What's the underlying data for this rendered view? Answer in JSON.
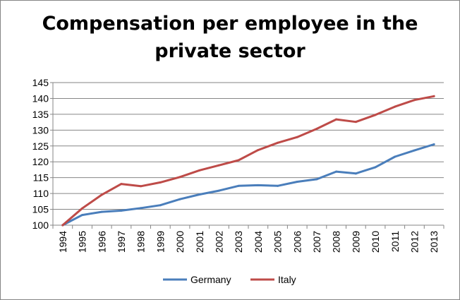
{
  "chart_data": {
    "type": "line",
    "title_lines": [
      "Compensation per employee in the",
      "private sector"
    ],
    "xlabel": "",
    "ylabel": "",
    "categories": [
      "1994",
      "1995",
      "1996",
      "1997",
      "1998",
      "1999",
      "2000",
      "2001",
      "2002",
      "2003",
      "2004",
      "2005",
      "2006",
      "2007",
      "2008",
      "2009",
      "2010",
      "2011",
      "2012",
      "2013"
    ],
    "ylim": [
      100,
      145
    ],
    "yticks": [
      100,
      105,
      110,
      115,
      120,
      125,
      130,
      135,
      140,
      145
    ],
    "grid": true,
    "legend_position": "bottom",
    "series": [
      {
        "name": "Germany",
        "color": "#4a7ebb",
        "values": [
          100,
          103.2,
          104.2,
          104.6,
          105.4,
          106.3,
          108.2,
          109.7,
          110.9,
          112.4,
          112.6,
          112.4,
          113.7,
          114.5,
          116.9,
          116.3,
          118.3,
          121.6,
          123.6,
          125.5
        ]
      },
      {
        "name": "Italy",
        "color": "#be4b48",
        "values": [
          100,
          105.3,
          109.6,
          113.0,
          112.3,
          113.5,
          115.2,
          117.3,
          118.9,
          120.5,
          123.7,
          126.0,
          127.8,
          130.4,
          133.4,
          132.6,
          134.8,
          137.4,
          139.5,
          140.7
        ]
      }
    ]
  }
}
